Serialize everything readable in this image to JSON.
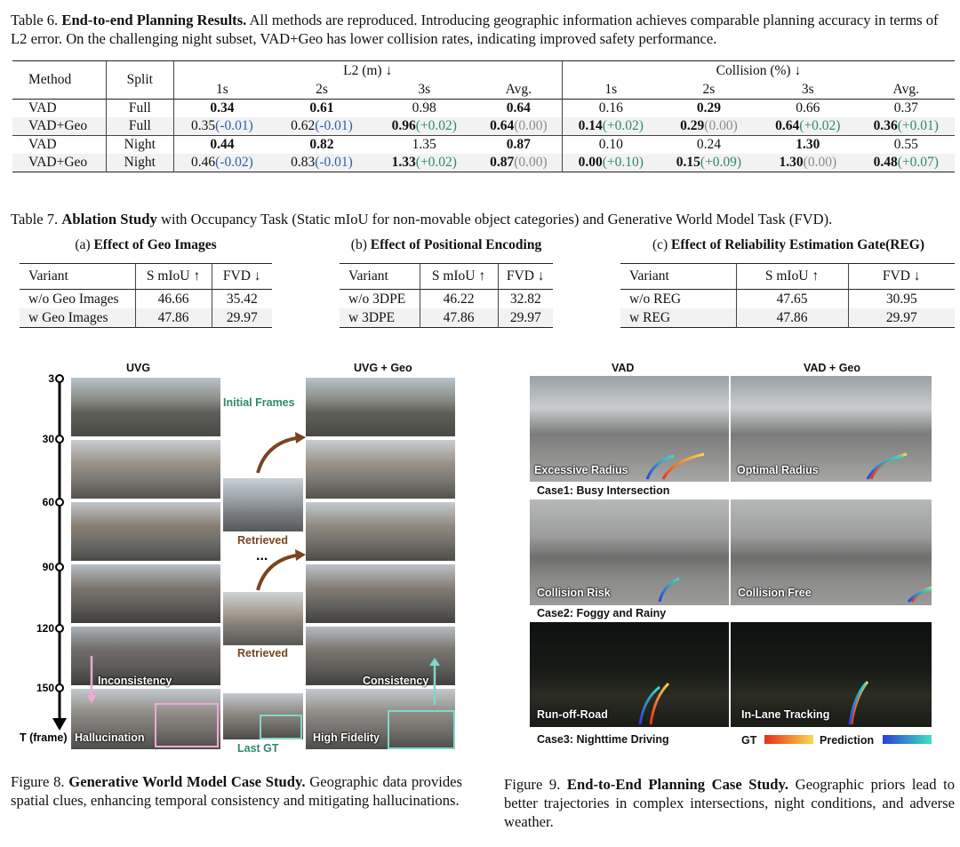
{
  "table6": {
    "caption_label": "Table 6.",
    "caption_bold": "End-to-end Planning Results.",
    "caption_text": " All methods are reproduced. Introducing geographic information achieves comparable planning accuracy in terms of L2 error. On the challenging night subset, VAD+Geo has lower collision rates, indicating improved safety performance.",
    "header": {
      "method": "Method",
      "split": "Split",
      "l2": "L2 (m) ↓",
      "collision": "Collision (%) ↓",
      "sub": [
        "1s",
        "2s",
        "3s",
        "Avg.",
        "1s",
        "2s",
        "3s",
        "Avg."
      ]
    },
    "rows": [
      {
        "method": "VAD",
        "split": "Full",
        "cells": [
          {
            "v": "0.34",
            "b": true
          },
          {
            "v": "0.61",
            "b": true
          },
          {
            "v": "0.98"
          },
          {
            "v": "0.64",
            "b": true
          },
          {
            "v": "0.16"
          },
          {
            "v": "0.29",
            "b": true
          },
          {
            "v": "0.66"
          },
          {
            "v": "0.37"
          }
        ]
      },
      {
        "method": "VAD+Geo",
        "split": "Full",
        "cells": [
          {
            "v": "0.35",
            "d": "(-0.01)",
            "c": "neg"
          },
          {
            "v": "0.62",
            "d": "(-0.01)",
            "c": "neg"
          },
          {
            "v": "0.96",
            "b": true,
            "d": "(+0.02)",
            "c": "pos"
          },
          {
            "v": "0.64",
            "b": true,
            "d": "(0.00)",
            "c": "zero"
          },
          {
            "v": "0.14",
            "b": true,
            "d": "(+0.02)",
            "c": "pos"
          },
          {
            "v": "0.29",
            "b": true,
            "d": "(0.00)",
            "c": "zero"
          },
          {
            "v": "0.64",
            "b": true,
            "d": "(+0.02)",
            "c": "pos"
          },
          {
            "v": "0.36",
            "b": true,
            "d": "(+0.01)",
            "c": "pos"
          }
        ]
      },
      {
        "method": "VAD",
        "split": "Night",
        "cells": [
          {
            "v": "0.44",
            "b": true
          },
          {
            "v": "0.82",
            "b": true
          },
          {
            "v": "1.35"
          },
          {
            "v": "0.87",
            "b": true
          },
          {
            "v": "0.10"
          },
          {
            "v": "0.24"
          },
          {
            "v": "1.30",
            "b": true
          },
          {
            "v": "0.55"
          }
        ]
      },
      {
        "method": "VAD+Geo",
        "split": "Night",
        "cells": [
          {
            "v": "0.46",
            "d": "(-0.02)",
            "c": "neg"
          },
          {
            "v": "0.83",
            "d": "(-0.01)",
            "c": "neg"
          },
          {
            "v": "1.33",
            "b": true,
            "d": "(+0.02)",
            "c": "pos"
          },
          {
            "v": "0.87",
            "b": true,
            "d": "(0.00)",
            "c": "zero"
          },
          {
            "v": "0.00",
            "b": true,
            "d": "(+0.10)",
            "c": "pos"
          },
          {
            "v": "0.15",
            "b": true,
            "d": "(+0.09)",
            "c": "pos"
          },
          {
            "v": "1.30",
            "b": true,
            "d": "(0.00)",
            "c": "zero"
          },
          {
            "v": "0.48",
            "b": true,
            "d": "(+0.07)",
            "c": "pos"
          }
        ]
      }
    ]
  },
  "table7": {
    "caption_label": "Table 7.",
    "caption_bold": "Ablation Study",
    "caption_text": " with Occupancy Task (Static mIoU for non-movable object categories) and Generative World Model Task (FVD).",
    "sub_a": {
      "caption_prefix": "(a) ",
      "caption": "Effect of Geo Images",
      "headers": [
        "Variant",
        "S mIoU ↑",
        "FVD ↓"
      ],
      "rows": [
        [
          "w/o Geo Images",
          "46.66",
          "35.42"
        ],
        [
          "w Geo Images",
          "47.86",
          "29.97"
        ]
      ]
    },
    "sub_b": {
      "caption_prefix": "(b) ",
      "caption": "Effect of Positional Encoding",
      "headers": [
        "Variant",
        "S mIoU ↑",
        "FVD ↓"
      ],
      "rows": [
        [
          "w/o 3DPE",
          "46.22",
          "32.82"
        ],
        [
          "w 3DPE",
          "47.86",
          "29.97"
        ]
      ]
    },
    "sub_c": {
      "caption_prefix": "(c) ",
      "caption": "Effect of Reliability Estimation Gate(REG)",
      "headers": [
        "Variant",
        "S mIoU ↑",
        "FVD ↓"
      ],
      "rows": [
        [
          "w/o REG",
          "47.65",
          "30.95"
        ],
        [
          "w REG",
          "47.86",
          "29.97"
        ]
      ]
    }
  },
  "figure8": {
    "left_title": "UVG",
    "right_title": "UVG + Geo",
    "axis_label": "T (frame)",
    "ticks": [
      "3",
      "30",
      "60",
      "90",
      "120",
      "150"
    ],
    "initial_frames": "Initial Frames",
    "retrieved": "Retrieved",
    "ellipsis": "...",
    "last_gt": "Last GT",
    "inconsistency": "Inconsistency",
    "hallucination": "Hallucination",
    "consistency": "Consistency",
    "high_fidelity": "High Fidelity",
    "caption_label": "Figure 8.",
    "caption_bold": "Generative World Model Case Study.",
    "caption_text": " Geographic data provides spatial clues, enhancing temporal consistency and mitigating hallucinations.",
    "colors": {
      "green": "#2e8a67",
      "brown": "#7a4420",
      "pink": "#f0a8d8",
      "teal": "#7fd8c8"
    }
  },
  "figure9": {
    "col_vad": "VAD",
    "col_geo": "VAD + Geo",
    "labels": [
      "Excessive Radius",
      "Optimal Radius",
      "Collision Risk",
      "Collision Free",
      "Run-off-Road",
      "In-Lane Tracking"
    ],
    "cases": [
      "Case1: Busy Intersection",
      "Case2: Foggy and Rainy",
      "Case3: Nighttime Driving"
    ],
    "legend_gt": "GT",
    "legend_pred": "Prediction",
    "caption_label": "Figure 9.",
    "caption_bold": "End-to-End Planning Case Study.",
    "caption_text": " Geographic priors lead to better trajectories in complex intersections, night conditions, and adverse weather."
  }
}
